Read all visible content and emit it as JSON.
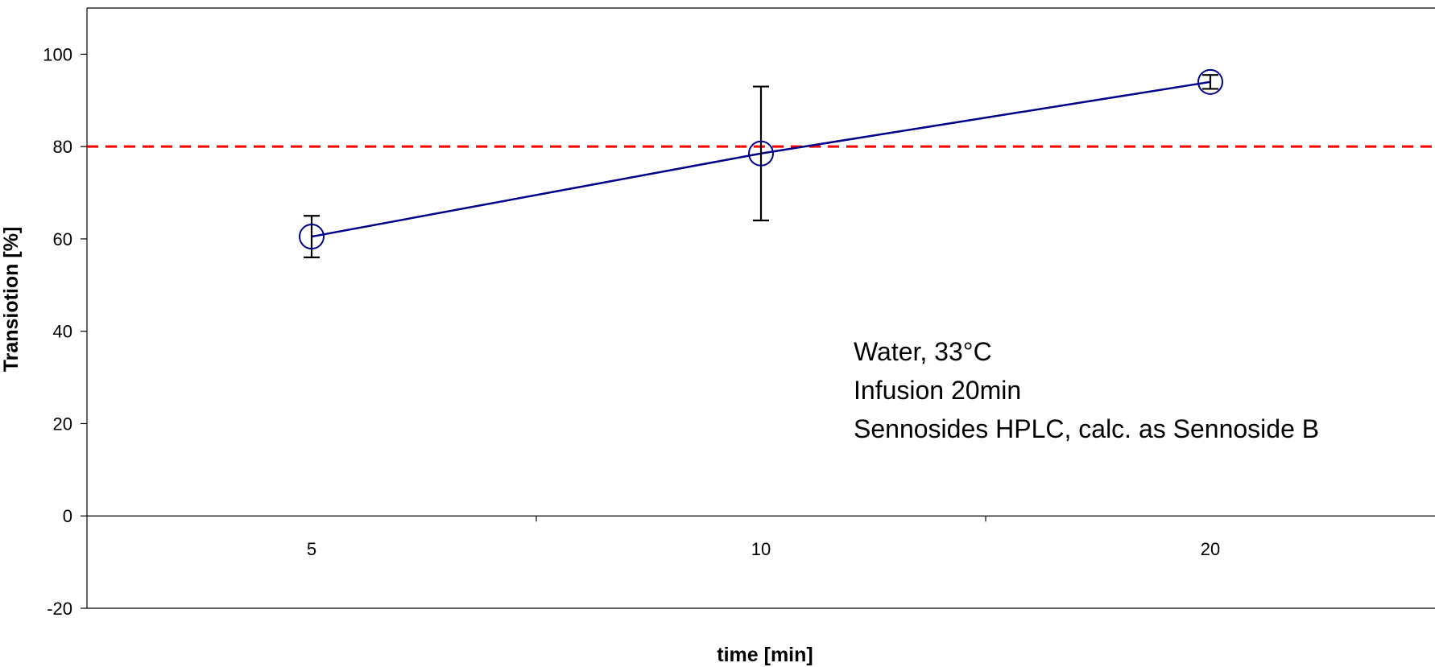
{
  "chart_data": {
    "type": "line",
    "categories": [
      "5",
      "10",
      "20"
    ],
    "series": [
      {
        "values": [
          60.5,
          78.5,
          94.0
        ],
        "error": [
          4.5,
          14.5,
          1.5
        ],
        "color": "#00008b",
        "marker": "open-circle"
      }
    ],
    "reference_line": {
      "y": 80,
      "color": "#ff0000",
      "style": "dashed"
    },
    "xlabel": "time [min]",
    "ylabel": "Transiotion [%]",
    "ylim": [
      -20,
      110
    ],
    "yticks": [
      -20,
      0,
      20,
      40,
      60,
      80,
      100
    ],
    "annotation": [
      "Water, 33°C",
      "Infusion 20min",
      "Sennosides HPLC, calc. as Sennoside B"
    ],
    "grid": false,
    "legend": "none"
  }
}
